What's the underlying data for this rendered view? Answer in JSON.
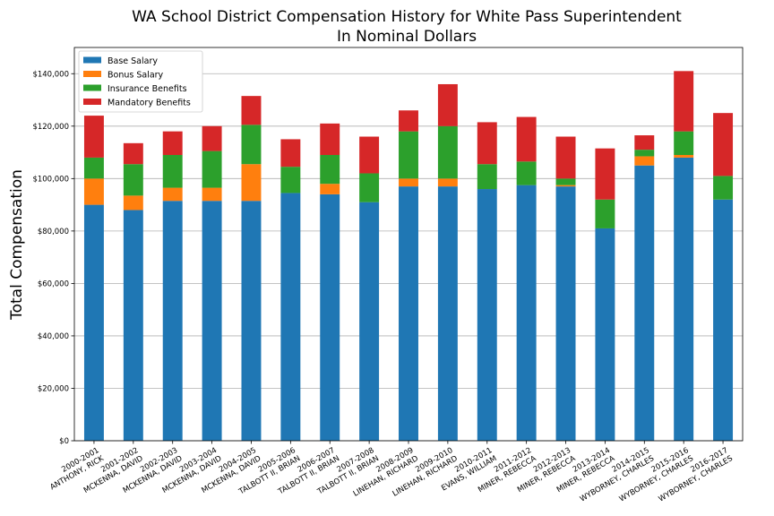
{
  "chart_data": {
    "type": "bar",
    "stacked": true,
    "title": "WA School District Compensation History for White Pass Superintendent",
    "subtitle": "In Nominal Dollars",
    "xlabel": "",
    "ylabel": "Total Compensation",
    "ylim": [
      0,
      150000
    ],
    "yticks": [
      0,
      20000,
      40000,
      60000,
      80000,
      100000,
      120000,
      140000
    ],
    "ytick_labels": [
      "$0",
      "$20,000",
      "$40,000",
      "$60,000",
      "$80,000",
      "$100,000",
      "$120,000",
      "$140,000"
    ],
    "grid": "horizontal",
    "legend_position": "top-left",
    "categories": [
      [
        "2000-2001",
        "ANTHONY, RICK"
      ],
      [
        "2001-2002",
        "MCKENNA, DAVID"
      ],
      [
        "2002-2003",
        "MCKENNA, DAVID"
      ],
      [
        "2003-2004",
        "MCKENNA, DAVID"
      ],
      [
        "2004-2005",
        "MCKENNA, DAVID"
      ],
      [
        "2005-2006",
        "TALBOTT  II, BRIAN"
      ],
      [
        "2006-2007",
        "TALBOTT  II, BRIAN"
      ],
      [
        "2007-2008",
        "TALBOTT  II, BRIAN"
      ],
      [
        "2008-2009",
        "LINEHAN, RICHARD"
      ],
      [
        "2009-2010",
        "LINEHAN, RICHARD"
      ],
      [
        "2010-2011",
        "EVANS, WILLIAM"
      ],
      [
        "2011-2012",
        "MINER, REBECCA"
      ],
      [
        "2012-2013",
        "MINER, REBECCA"
      ],
      [
        "2013-2014",
        "MINER, REBECCA"
      ],
      [
        "2014-2015",
        "WYBORNEY, CHARLES"
      ],
      [
        "2015-2016",
        "WYBORNEY, CHARLES"
      ],
      [
        "2016-2017",
        "WYBORNEY, CHARLES"
      ]
    ],
    "series": [
      {
        "name": "Base Salary",
        "color": "#1f77b4",
        "values": [
          90000,
          88000,
          91500,
          91500,
          91500,
          94500,
          94000,
          91000,
          97000,
          97000,
          96000,
          97500,
          97000,
          81000,
          105000,
          108000,
          92000
        ]
      },
      {
        "name": "Bonus Salary",
        "color": "#ff7f0e",
        "values": [
          10000,
          5500,
          5000,
          5000,
          14000,
          0,
          4000,
          0,
          3000,
          3000,
          0,
          0,
          500,
          0,
          3500,
          1000,
          0
        ]
      },
      {
        "name": "Insurance Benefits",
        "color": "#2ca02c",
        "values": [
          8000,
          12000,
          12500,
          14000,
          15000,
          10000,
          11000,
          11000,
          18000,
          20000,
          9500,
          9000,
          2500,
          11000,
          2500,
          9000,
          9000
        ]
      },
      {
        "name": "Mandatory Benefits",
        "color": "#d62728",
        "values": [
          16000,
          8000,
          9000,
          9500,
          11000,
          10500,
          12000,
          14000,
          8000,
          16000,
          16000,
          17000,
          16000,
          19500,
          5500,
          23000,
          24000
        ]
      }
    ]
  }
}
